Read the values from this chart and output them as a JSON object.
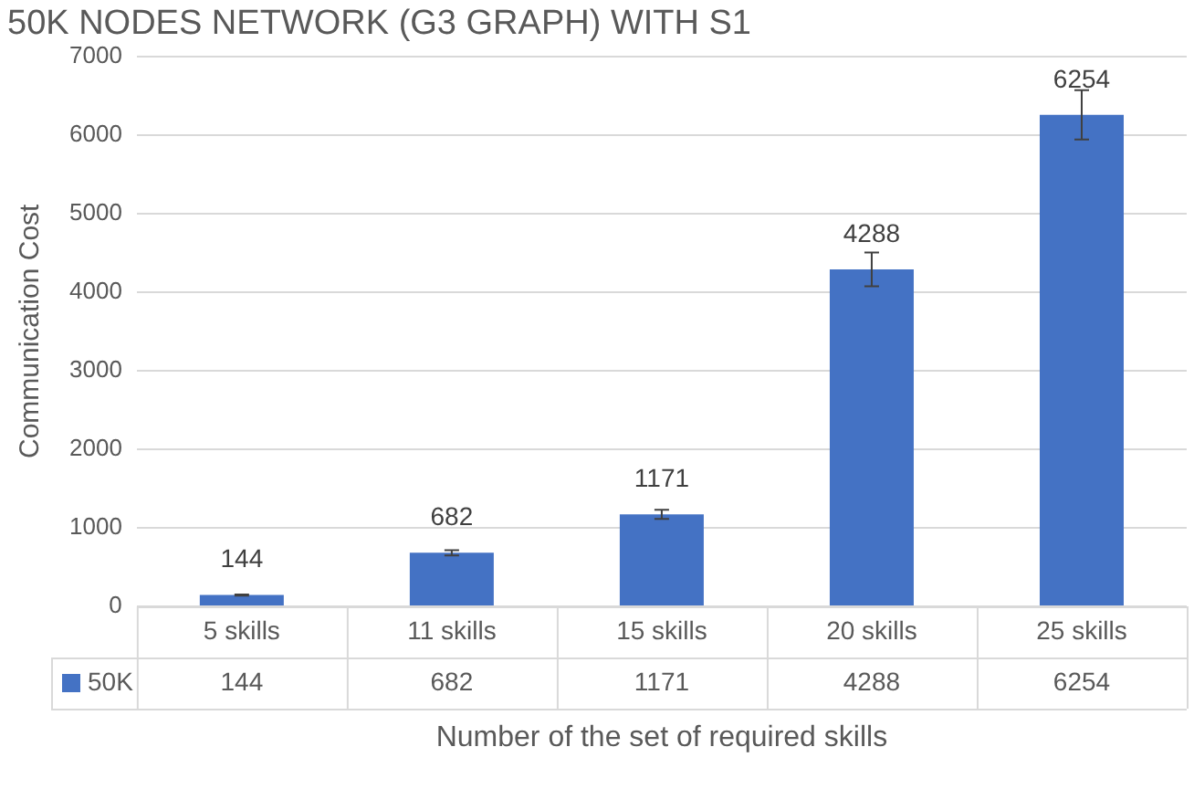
{
  "chart_data": {
    "type": "bar",
    "title": "50K NODES NETWORK (G3 GRAPH) WITH S1",
    "xlabel": "Number of the set of required skills",
    "ylabel": "Communication Cost",
    "categories": [
      "5 skills",
      "11 skills",
      "15 skills",
      "20 skills",
      "25 skills"
    ],
    "series": [
      {
        "name": "50K",
        "color": "#4472c4",
        "values": [
          144,
          682,
          1171,
          4288,
          6254
        ],
        "errors": [
          7,
          34,
          59,
          214,
          313
        ]
      }
    ],
    "annotations": [
      "144",
      "682",
      "1171",
      "4288",
      "6254"
    ],
    "ylim": [
      0,
      7000
    ],
    "yticks": [
      0,
      1000,
      2000,
      3000,
      4000,
      5000,
      6000,
      7000
    ],
    "grid": "y",
    "data_labels": true
  }
}
